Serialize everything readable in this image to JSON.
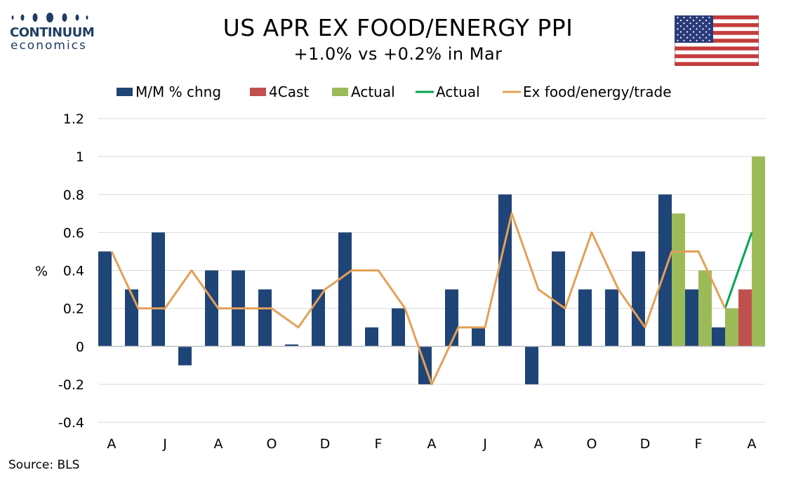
{
  "brand": {
    "line1": "CONTINUUM",
    "line2": "economics"
  },
  "title": "US APR EX FOOD/ENERGY PPI",
  "subtitle": "+1.0% vs +0.2% in Mar",
  "source": "Source: BLS",
  "flag_icon": "us-flag-icon",
  "colors": {
    "mm": "#1f4477",
    "forecast": "#c0504d",
    "actual_bar": "#9bbb59",
    "actual_line": "#00a550",
    "ex_trade": "#e4a056",
    "grid": "#d9d9d9",
    "brand": "#1f3d63"
  },
  "chart_data": {
    "type": "bar",
    "ylabel": "%",
    "ylim": [
      -0.4,
      1.2
    ],
    "yticks": [
      "1.2",
      "1",
      "0.8",
      "0.6",
      "0.4",
      "0.2",
      "0",
      "-0.2",
      "-0.4"
    ],
    "ytick_values": [
      1.2,
      1.0,
      0.8,
      0.6,
      0.4,
      0.2,
      0,
      -0.2,
      -0.4
    ],
    "grid": true,
    "legend_position": "top",
    "x_tick_labels": [
      {
        "index": 0,
        "label": "A"
      },
      {
        "index": 2,
        "label": "J"
      },
      {
        "index": 4,
        "label": "A"
      },
      {
        "index": 6,
        "label": "O"
      },
      {
        "index": 8,
        "label": "D"
      },
      {
        "index": 10,
        "label": "F"
      },
      {
        "index": 12,
        "label": "A"
      },
      {
        "index": 14,
        "label": "J"
      },
      {
        "index": 16,
        "label": "A"
      },
      {
        "index": 18,
        "label": "O"
      },
      {
        "index": 20,
        "label": "D"
      },
      {
        "index": 22,
        "label": "F"
      },
      {
        "index": 24,
        "label": "A"
      }
    ],
    "series": [
      {
        "name": "M/M % chng",
        "kind": "bar",
        "slot": "left",
        "values": [
          0.5,
          0.3,
          0.6,
          -0.1,
          0.4,
          0.4,
          0.3,
          0.01,
          0.3,
          0.6,
          0.1,
          0.2,
          -0.2,
          0.3,
          0.1,
          0.8,
          -0.2,
          0.5,
          0.3,
          0.3,
          0.5,
          0.8,
          0.3,
          0.1,
          null
        ]
      },
      {
        "name": "4Cast",
        "kind": "bar",
        "slot": "left",
        "values": [
          null,
          null,
          null,
          null,
          null,
          null,
          null,
          null,
          null,
          null,
          null,
          null,
          null,
          null,
          null,
          null,
          null,
          null,
          null,
          null,
          null,
          null,
          null,
          null,
          0.3
        ]
      },
      {
        "name": "Actual",
        "kind": "bar",
        "slot": "right",
        "values": [
          null,
          null,
          null,
          null,
          null,
          null,
          null,
          null,
          null,
          null,
          null,
          null,
          null,
          null,
          null,
          null,
          null,
          null,
          null,
          null,
          null,
          0.7,
          0.4,
          0.2,
          1.0
        ]
      },
      {
        "name": "Actual",
        "kind": "line",
        "values": [
          null,
          null,
          null,
          null,
          null,
          null,
          null,
          null,
          null,
          null,
          null,
          null,
          null,
          null,
          null,
          null,
          null,
          null,
          null,
          null,
          null,
          null,
          null,
          0.2,
          0.6
        ]
      },
      {
        "name": "Ex food/energy/trade",
        "kind": "line",
        "values": [
          0.5,
          0.2,
          0.2,
          0.4,
          0.2,
          0.2,
          0.2,
          0.1,
          0.3,
          0.4,
          0.4,
          0.2,
          -0.2,
          0.1,
          0.1,
          0.7,
          0.3,
          0.2,
          0.6,
          0.3,
          0.1,
          0.5,
          0.5,
          0.2,
          null
        ]
      }
    ]
  }
}
